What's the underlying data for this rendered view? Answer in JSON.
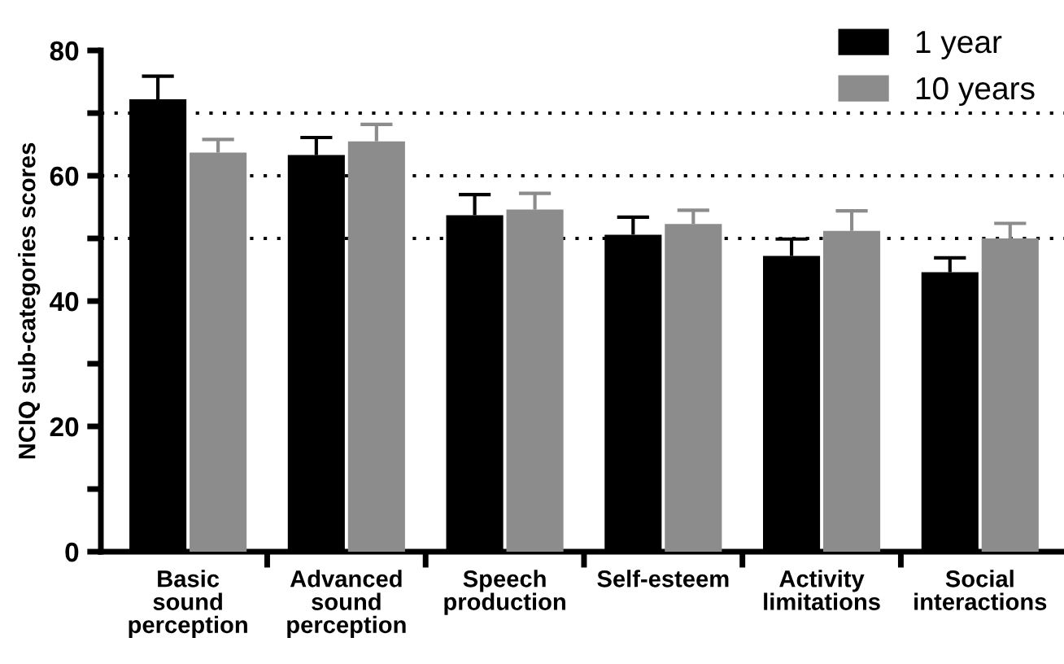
{
  "chart_data": {
    "type": "bar",
    "ylabel": "NCIQ sub-categories scores",
    "categories": [
      "Basic\nsound\nperception",
      "Advanced\nsound\nperception",
      "Speech\nproduction",
      "Self-esteem",
      "Activity\nlimitations",
      "Social\ninteractions"
    ],
    "series": [
      {
        "name": "1 year",
        "color": "#000000",
        "values": [
          72.2,
          63.3,
          53.7,
          50.6,
          47.2,
          44.6
        ],
        "errors": [
          [
            72.2,
            75.9
          ],
          [
            63.3,
            66.1
          ],
          [
            53.7,
            57.0
          ],
          [
            50.6,
            53.4
          ],
          [
            47.2,
            49.9
          ],
          [
            44.6,
            46.9
          ]
        ]
      },
      {
        "name": "10 years",
        "color": "#8c8c8c",
        "values": [
          63.7,
          65.5,
          54.6,
          52.3,
          51.2,
          50.0
        ],
        "errors": [
          [
            63.7,
            65.8
          ],
          [
            65.5,
            68.2
          ],
          [
            54.6,
            57.2
          ],
          [
            52.3,
            54.5
          ],
          [
            51.2,
            54.4
          ],
          [
            50.0,
            52.4
          ]
        ]
      }
    ],
    "ylim": [
      0,
      80
    ],
    "yticks": [
      0,
      {
        "value": 10,
        "label": null
      },
      20,
      {
        "value": 30,
        "label": null
      },
      40,
      {
        "value": 50,
        "label": null
      },
      60,
      {
        "value": 70,
        "label": null
      },
      80
    ],
    "ref_lines": [
      {
        "axis": "y",
        "value": 50,
        "color": "#000000",
        "line_style": "dotted"
      },
      {
        "axis": "y",
        "value": 60,
        "color": "#000000",
        "line_style": "dotted"
      },
      {
        "axis": "y",
        "value": 70,
        "color": "#000000",
        "line_style": "dotted"
      }
    ],
    "grid": false,
    "legend": "top right"
  }
}
